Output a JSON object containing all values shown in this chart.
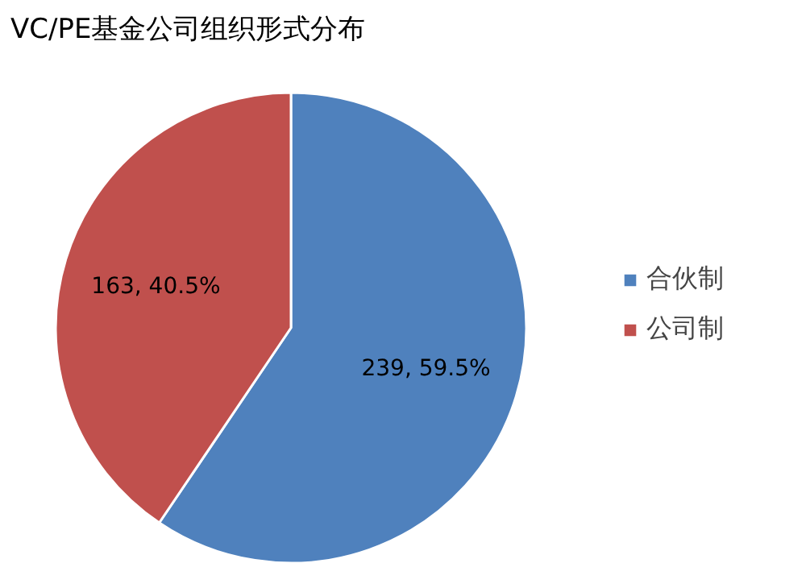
{
  "chart_data": {
    "type": "pie",
    "title": "VC/PE基金公司组织形式分布",
    "categories": [
      "合伙制",
      "公司制"
    ],
    "values": [
      239,
      163
    ],
    "colors": [
      "#4f81bd",
      "#c0504d"
    ],
    "value_labels": [
      "239, 59.5%",
      "163, 40.5%"
    ],
    "legend": "right"
  }
}
